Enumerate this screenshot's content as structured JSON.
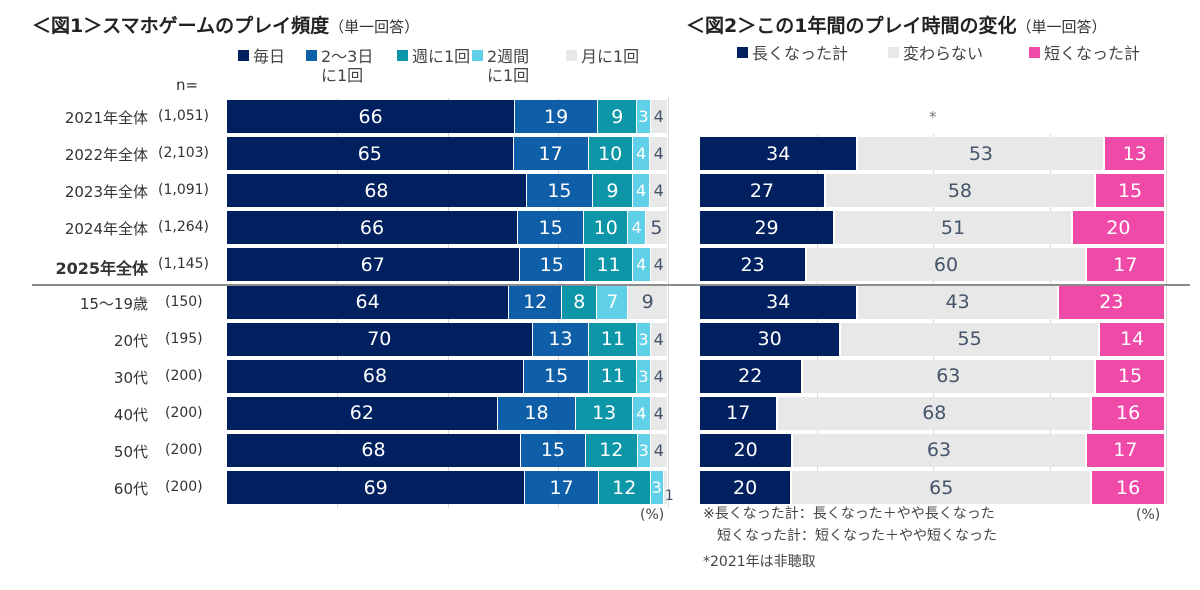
{
  "chart_data": [
    {
      "type": "bar",
      "orientation": "horizontal-stacked-100",
      "title": "＜図1＞スマホゲームのプレイ頻度",
      "subtitle": "（単一回答）",
      "n_header": "n=",
      "unit": "(%)",
      "categories": [
        "2021年全体",
        "2022年全体",
        "2023年全体",
        "2024年全体",
        "2025年全体",
        "15〜19歳",
        "20代",
        "30代",
        "40代",
        "50代",
        "60代"
      ],
      "n_values": [
        "(1,051)",
        "(2,103)",
        "(1,091)",
        "(1,264)",
        "(1,145)",
        "(150)",
        "(195)",
        "(200)",
        "(200)",
        "(200)",
        "(200)"
      ],
      "bold_category": "2025年全体",
      "series": [
        {
          "name": "毎日",
          "name_lines": [
            "毎日"
          ],
          "color": "#002060",
          "values": [
            66,
            65,
            68,
            66,
            67,
            64,
            70,
            68,
            62,
            68,
            69
          ]
        },
        {
          "name": "2〜3日に1回",
          "name_lines": [
            "2〜3日",
            "に1回"
          ],
          "color": "#0e5ea8",
          "values": [
            19,
            17,
            15,
            15,
            15,
            12,
            13,
            15,
            18,
            15,
            17
          ]
        },
        {
          "name": "週に1回",
          "name_lines": [
            "週に1回"
          ],
          "color": "#0c96a8",
          "values": [
            9,
            10,
            9,
            10,
            11,
            8,
            11,
            11,
            13,
            12,
            12
          ]
        },
        {
          "name": "2週間に1回",
          "name_lines": [
            "2週間",
            "に1回"
          ],
          "color": "#5fd0e8",
          "values": [
            3,
            4,
            4,
            4,
            4,
            7,
            3,
            3,
            4,
            3,
            3
          ]
        },
        {
          "name": "月に1回",
          "name_lines": [
            "月に1回"
          ],
          "color": "#e8e8e8",
          "values": [
            4,
            4,
            4,
            5,
            4,
            9,
            4,
            4,
            4,
            4,
            1
          ]
        }
      ],
      "xlim": [
        0,
        100
      ]
    },
    {
      "type": "bar",
      "orientation": "horizontal-stacked-100",
      "title": "＜図2＞この1年間のプレイ時間の変化",
      "subtitle": "（単一回答）",
      "unit": "(%)",
      "categories": [
        "2021年全体",
        "2022年全体",
        "2023年全体",
        "2024年全体",
        "2025年全体",
        "15〜19歳",
        "20代",
        "30代",
        "40代",
        "50代",
        "60代"
      ],
      "not_asked_marker": "*",
      "series": [
        {
          "name": "長くなった計",
          "color": "#002060",
          "values": [
            null,
            34,
            27,
            29,
            23,
            34,
            30,
            22,
            17,
            20,
            20
          ]
        },
        {
          "name": "変わらない",
          "color": "#e8e8e8",
          "values": [
            null,
            53,
            58,
            51,
            60,
            43,
            55,
            63,
            68,
            63,
            65
          ]
        },
        {
          "name": "短くなった計",
          "color": "#f04aa8",
          "values": [
            null,
            13,
            15,
            20,
            17,
            23,
            14,
            15,
            16,
            17,
            16
          ]
        }
      ],
      "notes": [
        "※長くなった計：長くなった＋やや長くなった",
        "　短くなった計：短くなった＋やや短くなった",
        "*2021年は非聴取"
      ],
      "xlim": [
        0,
        100
      ]
    }
  ]
}
